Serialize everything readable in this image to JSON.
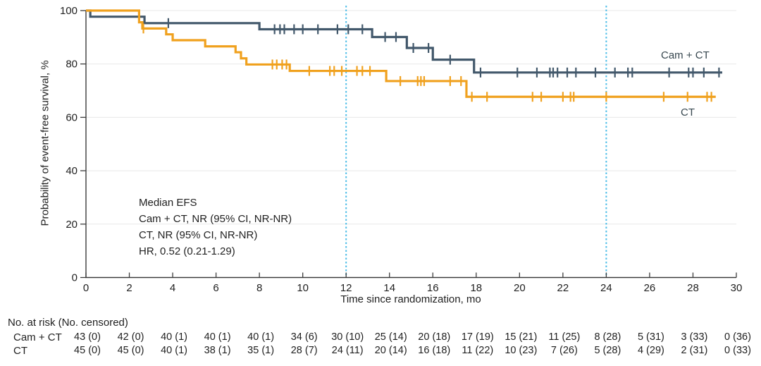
{
  "chart_data": {
    "type": "line",
    "subtype": "kaplan-meier-step",
    "title": "",
    "xlabel": "Time since randomization, mo",
    "ylabel": "Probability of event-free survival, %",
    "xlim": [
      0,
      30
    ],
    "ylim": [
      0,
      100
    ],
    "x_ticks": [
      0,
      2,
      4,
      6,
      8,
      10,
      12,
      14,
      16,
      18,
      20,
      22,
      24,
      26,
      28,
      30
    ],
    "y_ticks": [
      0,
      20,
      40,
      60,
      80,
      100
    ],
    "grid_y": [
      20,
      40,
      60,
      80,
      100
    ],
    "grid_on": true,
    "legend_position": "end-of-line",
    "reference_lines_x": [
      12,
      24
    ],
    "reference_line_color": "#4fbee8",
    "series": [
      {
        "name": "Cam + CT",
        "color": "#42586b",
        "end_time": 29.35,
        "steps": [
          [
            0,
            100
          ],
          [
            0.2,
            97.7
          ],
          [
            2.7,
            95.3
          ],
          [
            8.0,
            93.0
          ],
          [
            13.2,
            90.1
          ],
          [
            14.8,
            86.0
          ],
          [
            16.0,
            81.6
          ],
          [
            17.9,
            76.8
          ]
        ],
        "censor_times": [
          3.8,
          8.7,
          8.95,
          9.15,
          9.6,
          10.0,
          10.7,
          11.6,
          12.1,
          12.75,
          13.8,
          14.3,
          15.1,
          15.8,
          16.8,
          18.2,
          19.9,
          20.8,
          21.4,
          21.55,
          21.75,
          22.2,
          22.6,
          23.5,
          24.4,
          25.0,
          25.2,
          26.9,
          27.8,
          28.0,
          28.5,
          29.2
        ]
      },
      {
        "name": "CT",
        "color": "#f0a11e",
        "end_time": 29.05,
        "steps": [
          [
            0,
            100
          ],
          [
            2.45,
            95.6
          ],
          [
            2.6,
            93.3
          ],
          [
            3.7,
            91.1
          ],
          [
            4.0,
            88.9
          ],
          [
            5.5,
            86.6
          ],
          [
            6.9,
            84.4
          ],
          [
            7.15,
            82.1
          ],
          [
            7.4,
            79.8
          ],
          [
            9.4,
            77.4
          ],
          [
            13.85,
            73.6
          ],
          [
            17.55,
            67.7
          ]
        ],
        "censor_times": [
          2.65,
          8.6,
          8.8,
          9.05,
          9.25,
          10.3,
          11.25,
          11.45,
          11.8,
          12.5,
          12.75,
          13.1,
          14.5,
          15.3,
          15.45,
          15.6,
          16.8,
          17.3,
          17.8,
          18.5,
          20.6,
          21.0,
          22.0,
          22.35,
          22.5,
          24.0,
          26.65,
          27.75,
          28.65,
          28.85
        ]
      }
    ],
    "annotation": [
      "Median EFS",
      "Cam + CT, NR (95% CI, NR-NR)",
      "CT, NR (95% CI, NR-NR)",
      "HR, 0.52 (0.21-1.29)"
    ]
  },
  "risk_table": {
    "header": "No. at risk (No. censored)",
    "time_points": [
      0,
      2,
      4,
      6,
      8,
      10,
      12,
      14,
      16,
      18,
      20,
      22,
      24,
      26,
      28,
      30
    ],
    "rows": [
      {
        "label": "Cam + CT",
        "values": [
          "43 (0)",
          "42 (0)",
          "40 (1)",
          "40 (1)",
          "40 (1)",
          "34 (6)",
          "30 (10)",
          "25 (14)",
          "20 (18)",
          "17 (19)",
          "15 (21)",
          "11 (25)",
          "8 (28)",
          "5 (31)",
          "3 (33)",
          "0 (36)"
        ]
      },
      {
        "label": "CT",
        "values": [
          "45 (0)",
          "45 (0)",
          "40 (1)",
          "38 (1)",
          "35 (1)",
          "28 (7)",
          "24 (11)",
          "20 (14)",
          "16 (18)",
          "11 (22)",
          "10 (23)",
          "7 (26)",
          "5 (28)",
          "4 (29)",
          "2 (31)",
          "0 (33)"
        ]
      }
    ]
  }
}
